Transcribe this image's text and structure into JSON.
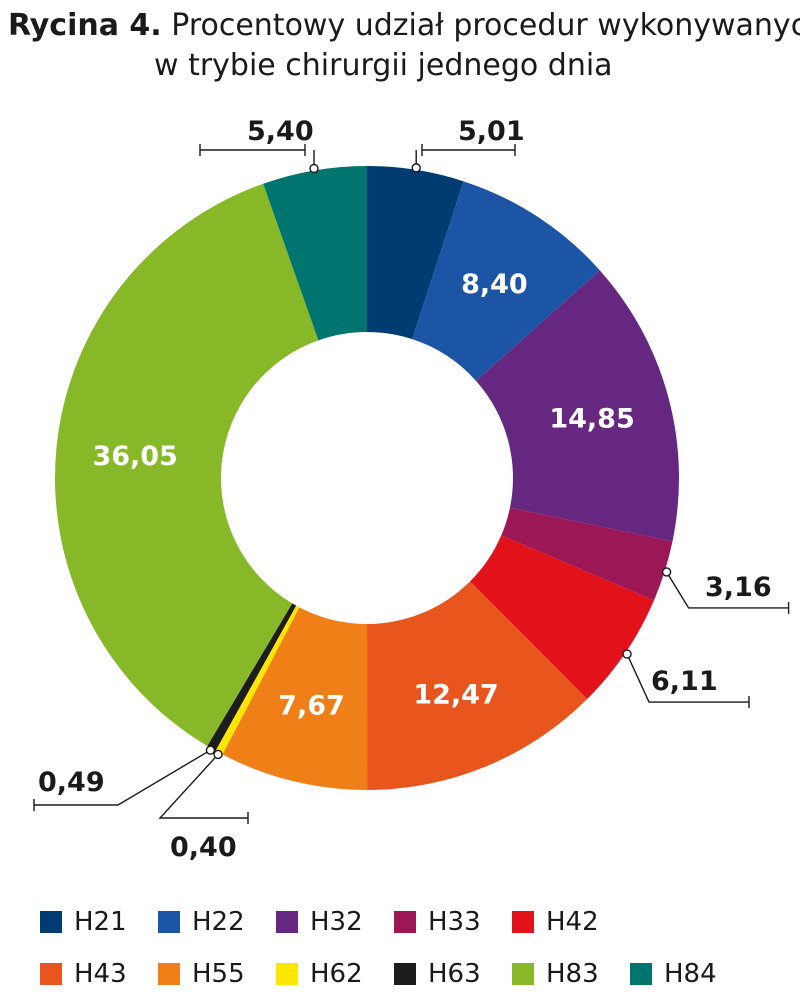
{
  "title": {
    "label": "Rycina 4.",
    "line1": "Procentowy udział procedur wykonywanych",
    "line2": "w trybie chirurgii jednego dnia"
  },
  "chart_data": {
    "type": "pie",
    "subtype": "donut",
    "categories": [
      "H21",
      "H22",
      "H32",
      "H33",
      "H42",
      "H43",
      "H55",
      "H62",
      "H63",
      "H83",
      "H84"
    ],
    "values": [
      5.01,
      8.4,
      14.85,
      3.16,
      6.11,
      12.47,
      7.67,
      0.4,
      0.49,
      36.05,
      5.4
    ],
    "value_labels": [
      "5,01",
      "8,40",
      "14,85",
      "3,16",
      "6,11",
      "12,47",
      "7,67",
      "0,40",
      "0,49",
      "36,05",
      "5,40"
    ],
    "colors": [
      "#003b71",
      "#1c55a6",
      "#65277f",
      "#9c1756",
      "#e2121b",
      "#e8561d",
      "#f07f17",
      "#fee600",
      "#1d1d1b",
      "#86b828",
      "#00756f"
    ],
    "legend_position": "bottom",
    "label_color_inside": "#ffffff",
    "label_color_outside": "#1a1a1a"
  }
}
